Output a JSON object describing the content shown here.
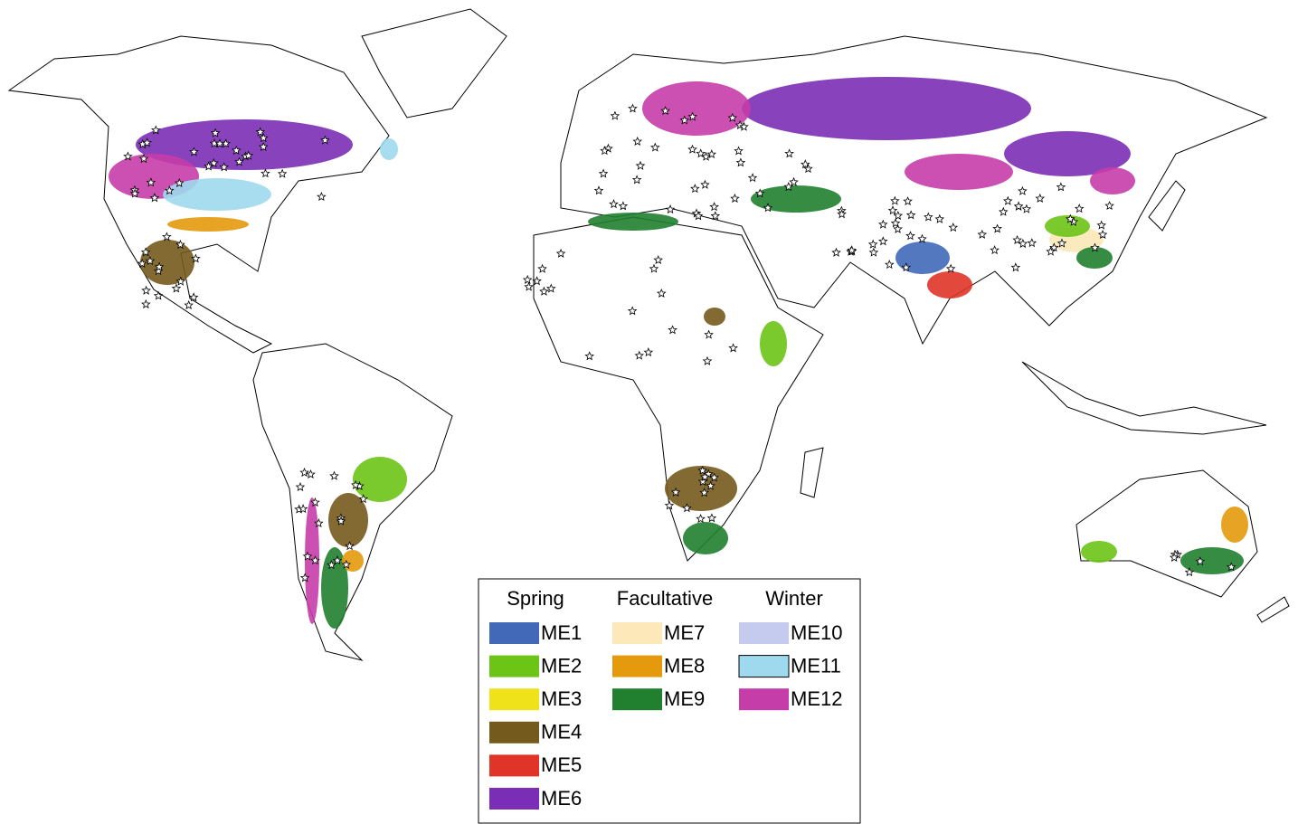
{
  "legend": {
    "groups": [
      {
        "title": "Spring",
        "items": [
          {
            "label": "ME1",
            "color": "#4169b8"
          },
          {
            "label": "ME2",
            "color": "#6cc417"
          },
          {
            "label": "ME3",
            "color": "#f0e21a"
          },
          {
            "label": "ME4",
            "color": "#745a1c"
          },
          {
            "label": "ME5",
            "color": "#e03428"
          },
          {
            "label": "ME6",
            "color": "#7a2db5"
          }
        ]
      },
      {
        "title": "Facultative",
        "items": [
          {
            "label": "ME7",
            "color": "#fce8b8"
          },
          {
            "label": "ME8",
            "color": "#e49a0c"
          },
          {
            "label": "ME9",
            "color": "#21802f"
          }
        ]
      },
      {
        "title": "Winter",
        "items": [
          {
            "label": "ME10",
            "color": "#c5cbef"
          },
          {
            "label": "ME11",
            "color": "#9fd9ee"
          },
          {
            "label": "ME12",
            "color": "#c53da8"
          }
        ]
      }
    ]
  }
}
